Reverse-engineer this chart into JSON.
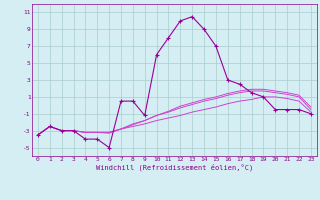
{
  "xlabel": "Windchill (Refroidissement éolien,°C)",
  "x": [
    0,
    1,
    2,
    3,
    4,
    5,
    6,
    7,
    8,
    9,
    10,
    11,
    12,
    13,
    14,
    15,
    16,
    17,
    18,
    19,
    20,
    21,
    22,
    23
  ],
  "line1": [
    -3.5,
    -2.5,
    -3.0,
    -3.0,
    -4.0,
    -4.0,
    -5.0,
    0.5,
    0.5,
    -1.2,
    6.0,
    8.0,
    10.0,
    10.5,
    9.0,
    7.0,
    3.0,
    2.5,
    1.5,
    1.0,
    -0.5,
    -0.5,
    -0.5,
    -1.0
  ],
  "line2": [
    -3.5,
    -2.5,
    -3.0,
    -3.0,
    -3.2,
    -3.2,
    -3.2,
    -2.8,
    -2.5,
    -2.2,
    -1.8,
    -1.5,
    -1.2,
    -0.8,
    -0.5,
    -0.2,
    0.2,
    0.5,
    0.7,
    1.0,
    1.0,
    0.8,
    0.5,
    -0.8
  ],
  "line3": [
    -3.5,
    -2.5,
    -3.0,
    -3.0,
    -3.2,
    -3.2,
    -3.2,
    -2.8,
    -2.2,
    -1.8,
    -1.2,
    -0.8,
    -0.3,
    0.1,
    0.5,
    0.8,
    1.2,
    1.5,
    1.7,
    1.7,
    1.5,
    1.3,
    1.0,
    -0.5
  ],
  "line4": [
    -3.5,
    -2.5,
    -3.0,
    -3.0,
    -3.2,
    -3.2,
    -3.3,
    -2.8,
    -2.3,
    -1.8,
    -1.2,
    -0.7,
    -0.1,
    0.3,
    0.7,
    1.0,
    1.4,
    1.7,
    1.9,
    1.9,
    1.7,
    1.5,
    1.2,
    -0.2
  ],
  "line_color1": "#990099",
  "line_color234": "#cc44cc",
  "bg_color": "#d4eef4",
  "grid_color": "#aacccc",
  "tick_color": "#880088",
  "ylim": [
    -6,
    12
  ],
  "xlim": [
    -0.5,
    23.5
  ],
  "yticks": [
    -5,
    -3,
    -1,
    1,
    3,
    5,
    7,
    9,
    11
  ],
  "xticks": [
    0,
    1,
    2,
    3,
    4,
    5,
    6,
    7,
    8,
    9,
    10,
    11,
    12,
    13,
    14,
    15,
    16,
    17,
    18,
    19,
    20,
    21,
    22,
    23
  ]
}
